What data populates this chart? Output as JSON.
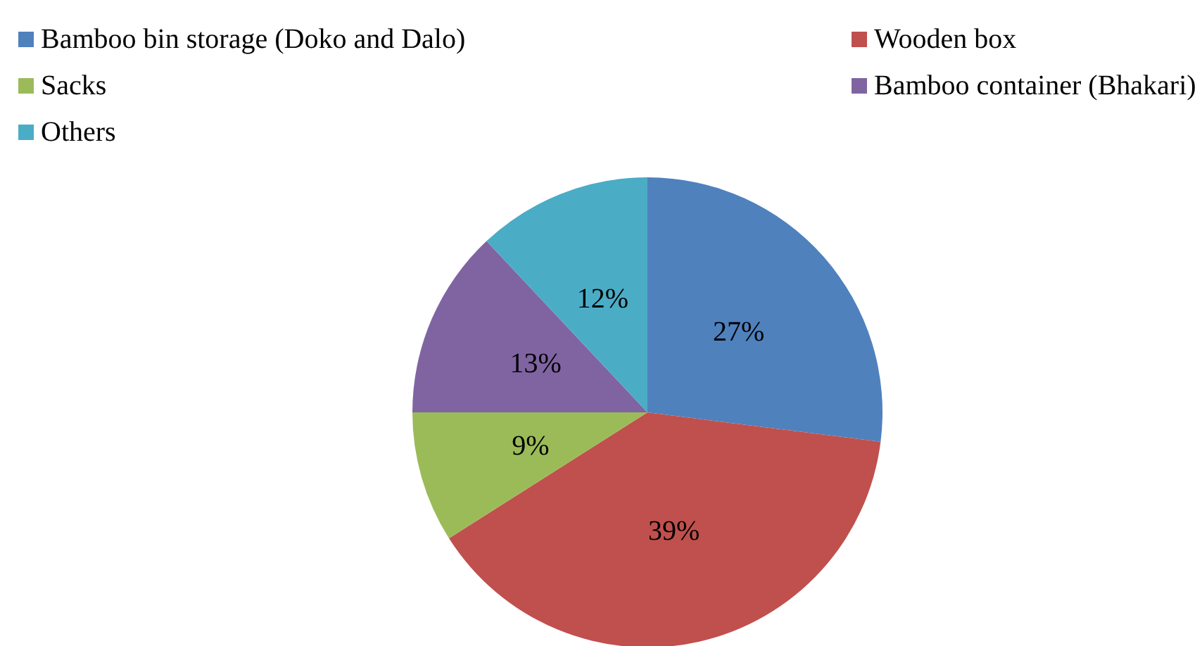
{
  "chart_data": {
    "type": "pie",
    "categories": [
      "Bamboo bin storage (Doko and Dalo)",
      "Wooden box",
      "Sacks",
      "Bamboo container (Bhakari)",
      "Others"
    ],
    "values": [
      27,
      39,
      9,
      13,
      12
    ],
    "colors": [
      "#4f81bd",
      "#c0504d",
      "#9bbb59",
      "#8064a2",
      "#4bacc6"
    ],
    "value_labels": [
      "27%",
      "39%",
      "9%",
      "13%",
      "12%"
    ],
    "legend": "top left"
  }
}
